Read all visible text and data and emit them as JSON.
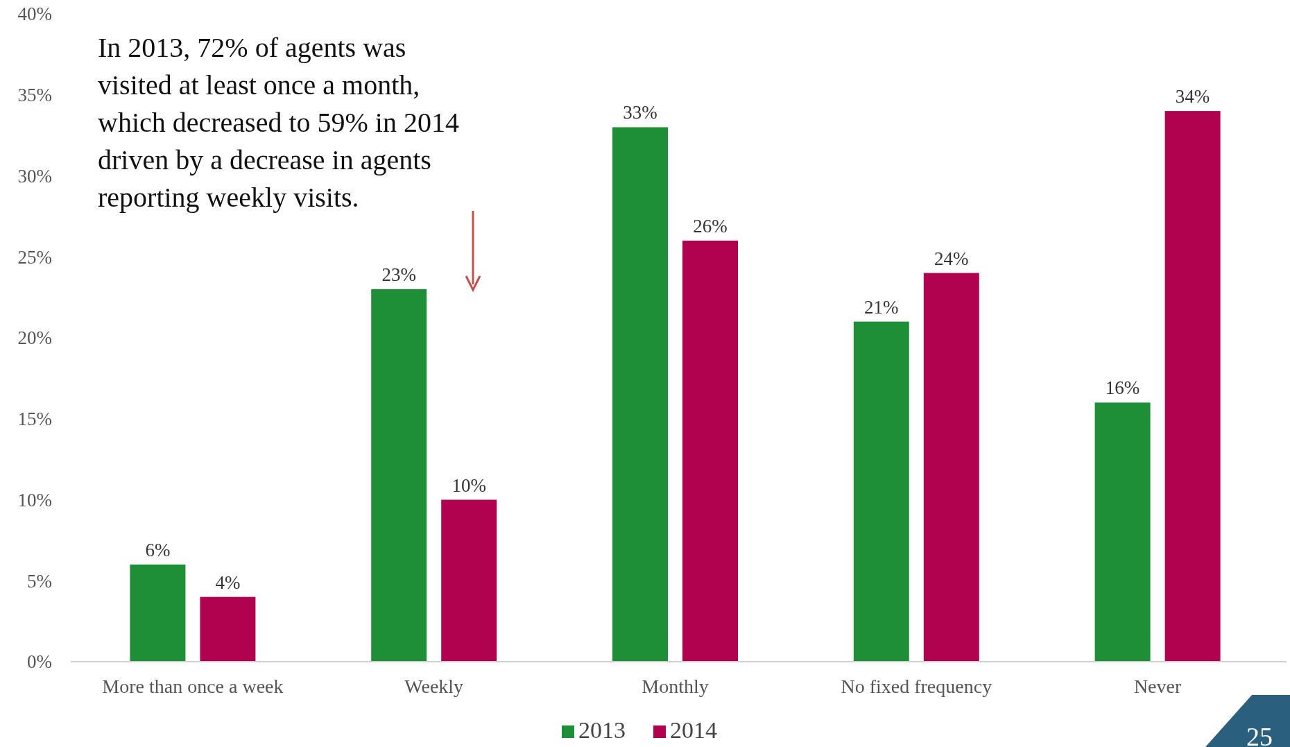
{
  "chart_data": {
    "type": "bar",
    "categories": [
      "More than once a week",
      "Weekly",
      "Monthly",
      "No fixed frequency",
      "Never"
    ],
    "series": [
      {
        "name": "2013",
        "color": "#1e8f36",
        "values": [
          6,
          23,
          33,
          21,
          16
        ],
        "value_labels": [
          "6%",
          "23%",
          "33%",
          "21%",
          "16%"
        ]
      },
      {
        "name": "2014",
        "color": "#b0024f",
        "values": [
          4,
          10,
          26,
          24,
          34
        ],
        "value_labels": [
          "4%",
          "10%",
          "26%",
          "24%",
          "34%"
        ]
      }
    ],
    "ylim": [
      0,
      40
    ],
    "yticks": [
      {
        "value": 0,
        "label": "0%"
      },
      {
        "value": 5,
        "label": "5%"
      },
      {
        "value": 10,
        "label": "10%"
      },
      {
        "value": 15,
        "label": "15%"
      },
      {
        "value": 20,
        "label": "20%"
      },
      {
        "value": 25,
        "label": "25%"
      },
      {
        "value": 30,
        "label": "30%"
      },
      {
        "value": 35,
        "label": "35%"
      },
      {
        "value": 40,
        "label": "40%"
      }
    ],
    "legend": "bottom",
    "grid": false,
    "annotations": [
      "In 2013, 72% of agents was visited at least once a month, which decreased to 59% in 2014 driven by a decrease in agents reporting weekly visits.",
      "25"
    ]
  }
}
